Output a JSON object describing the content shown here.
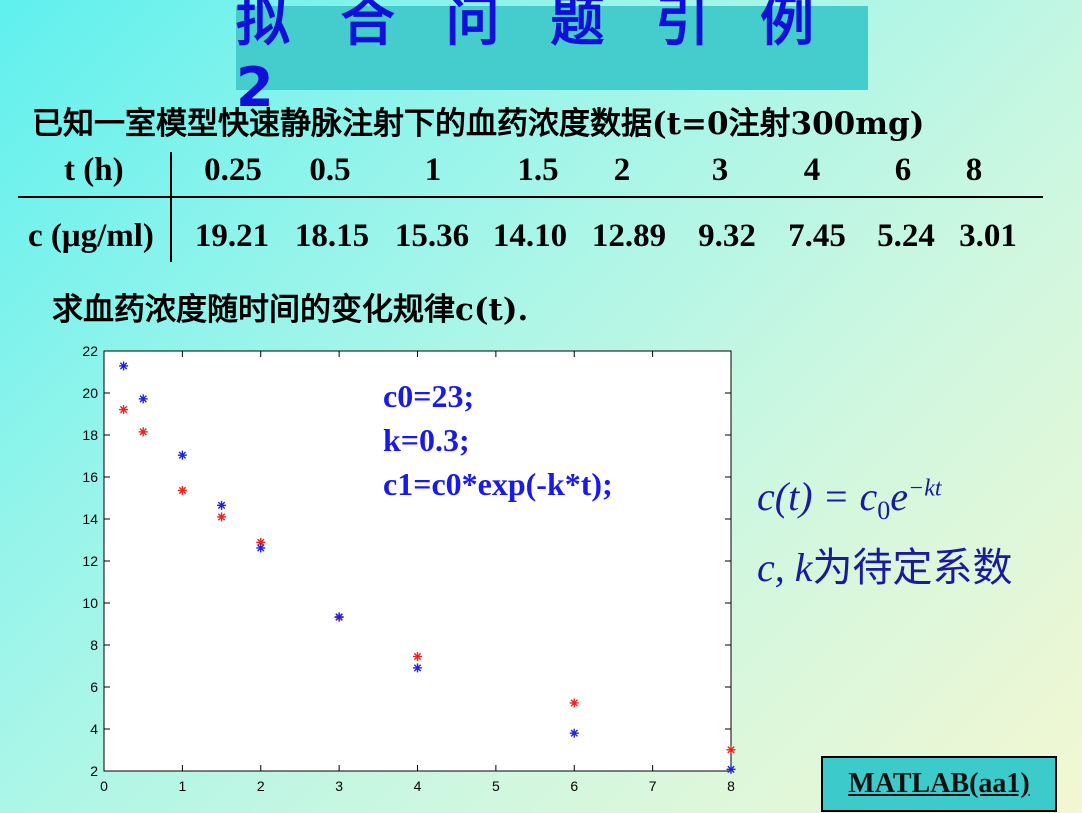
{
  "title": "拟 合 问 题 引 例 2",
  "intro": "已知一室模型快速静脉注射下的血药浓度数据(t=0注射300mg)",
  "table": {
    "row1_header": "t (h)",
    "row2_header": "c (μg/ml)",
    "t_values": [
      "0.25",
      "0.5",
      "1",
      "1.5",
      "2",
      "3",
      "4",
      "6",
      "8"
    ],
    "c_values": [
      "19.21",
      "18.15",
      "15.36",
      "14.10",
      "12.89",
      "9.32",
      "7.45",
      "5.24",
      "3.01"
    ]
  },
  "question": "求血药浓度随时间的变化规律c(t).",
  "code_lines": [
    "c0=23;",
    "k=0.3;",
    "c1=c0*exp(-k*t);"
  ],
  "formula": {
    "main": "c(t) = c",
    "sub": "0",
    "base": "e",
    "exponent": "−kt",
    "note_vars": "c, k",
    "note_text": "为待定系数"
  },
  "matlab_button": "MATLAB(aa1)",
  "chart_data": {
    "type": "scatter",
    "xlim": [
      0,
      8
    ],
    "ylim": [
      2,
      22
    ],
    "x_ticks": [
      "0",
      "1",
      "2",
      "3",
      "4",
      "5",
      "6",
      "7",
      "8"
    ],
    "y_ticks": [
      "2",
      "4",
      "6",
      "8",
      "10",
      "12",
      "14",
      "16",
      "18",
      "20",
      "22"
    ],
    "grid": false,
    "series": [
      {
        "color": "#ee2222",
        "marker": "*",
        "x": [
          0.25,
          0.5,
          1,
          1.5,
          2,
          3,
          4,
          6,
          8
        ],
        "y": [
          19.21,
          18.15,
          15.36,
          14.1,
          12.89,
          9.32,
          7.45,
          5.24,
          3.01
        ]
      },
      {
        "color": "#2222dd",
        "marker": "*",
        "x": [
          0.25,
          0.5,
          1,
          1.5,
          2,
          3,
          4,
          6,
          8
        ],
        "y": [
          21.29,
          19.72,
          17.04,
          14.65,
          12.62,
          9.34,
          6.91,
          3.8,
          2.08
        ]
      }
    ]
  }
}
